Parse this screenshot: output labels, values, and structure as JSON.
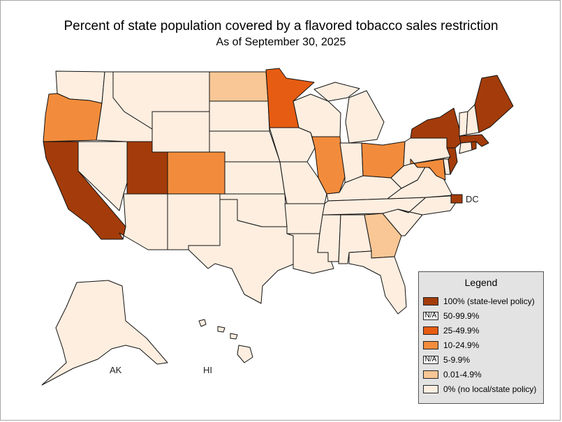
{
  "title": "Percent of state population covered by a flavored tobacco sales restriction",
  "subtitle": "As of September 30, 2025",
  "colors": {
    "p100": "#a33c0a",
    "p25": "#e65c12",
    "p10": "#f28c3c",
    "p001": "#f9c795",
    "p0": "#fdeee0",
    "outline": "#111111"
  },
  "categories": [
    {
      "id": "p100",
      "label": "100% (state-level policy)"
    },
    {
      "id": "p50",
      "label": "50-99.9%"
    },
    {
      "id": "p25",
      "label": "25-49.9%"
    },
    {
      "id": "p10",
      "label": "10-24.9%"
    },
    {
      "id": "p5",
      "label": "5-9.9%"
    },
    {
      "id": "p001",
      "label": "0.01-4.9%"
    },
    {
      "id": "p0",
      "label": "0% (no local/state policy)"
    }
  ],
  "legend": {
    "title": "Legend",
    "na_text": "N/A",
    "items": [
      {
        "label": "100% (state-level policy)",
        "color": "#a33c0a",
        "na": false
      },
      {
        "label": "50-99.9%",
        "color": "#ffffff",
        "na": true
      },
      {
        "label": "25-49.9%",
        "color": "#e65c12",
        "na": false
      },
      {
        "label": "10-24.9%",
        "color": "#f28c3c",
        "na": false
      },
      {
        "label": "5-9.9%",
        "color": "#ffffff",
        "na": true
      },
      {
        "label": "0.01-4.9%",
        "color": "#f9c795",
        "na": false
      },
      {
        "label": "0% (no local/state policy)",
        "color": "#fdeee0",
        "na": false
      }
    ]
  },
  "map_labels": {
    "ak": "AK",
    "hi": "HI",
    "dc": "DC"
  },
  "state_categories": {
    "CA": "p100",
    "UT": "p100",
    "NY": "p100",
    "MA": "p100",
    "RI": "p100",
    "NJ": "p100",
    "ME": "p100",
    "DC": "p100",
    "MN": "p25",
    "OR": "p10",
    "CO": "p10",
    "IL": "p10",
    "OH": "p10",
    "MD": "p10",
    "ND": "p001",
    "GA": "p001",
    "WA": "p0",
    "ID": "p0",
    "MT": "p0",
    "WY": "p0",
    "NV": "p0",
    "AZ": "p0",
    "NM": "p0",
    "SD": "p0",
    "NE": "p0",
    "KS": "p0",
    "OK": "p0",
    "TX": "p0",
    "IA": "p0",
    "MO": "p0",
    "AR": "p0",
    "LA": "p0",
    "WI": "p0",
    "MI": "p0",
    "IN": "p0",
    "KY": "p0",
    "TN": "p0",
    "MS": "p0",
    "AL": "p0",
    "FL": "p0",
    "SC": "p0",
    "NC": "p0",
    "VA": "p0",
    "WV": "p0",
    "PA": "p0",
    "DE": "p0",
    "CT": "p0",
    "VT": "p0",
    "NH": "p0",
    "AK": "p0",
    "HI": "p0"
  }
}
